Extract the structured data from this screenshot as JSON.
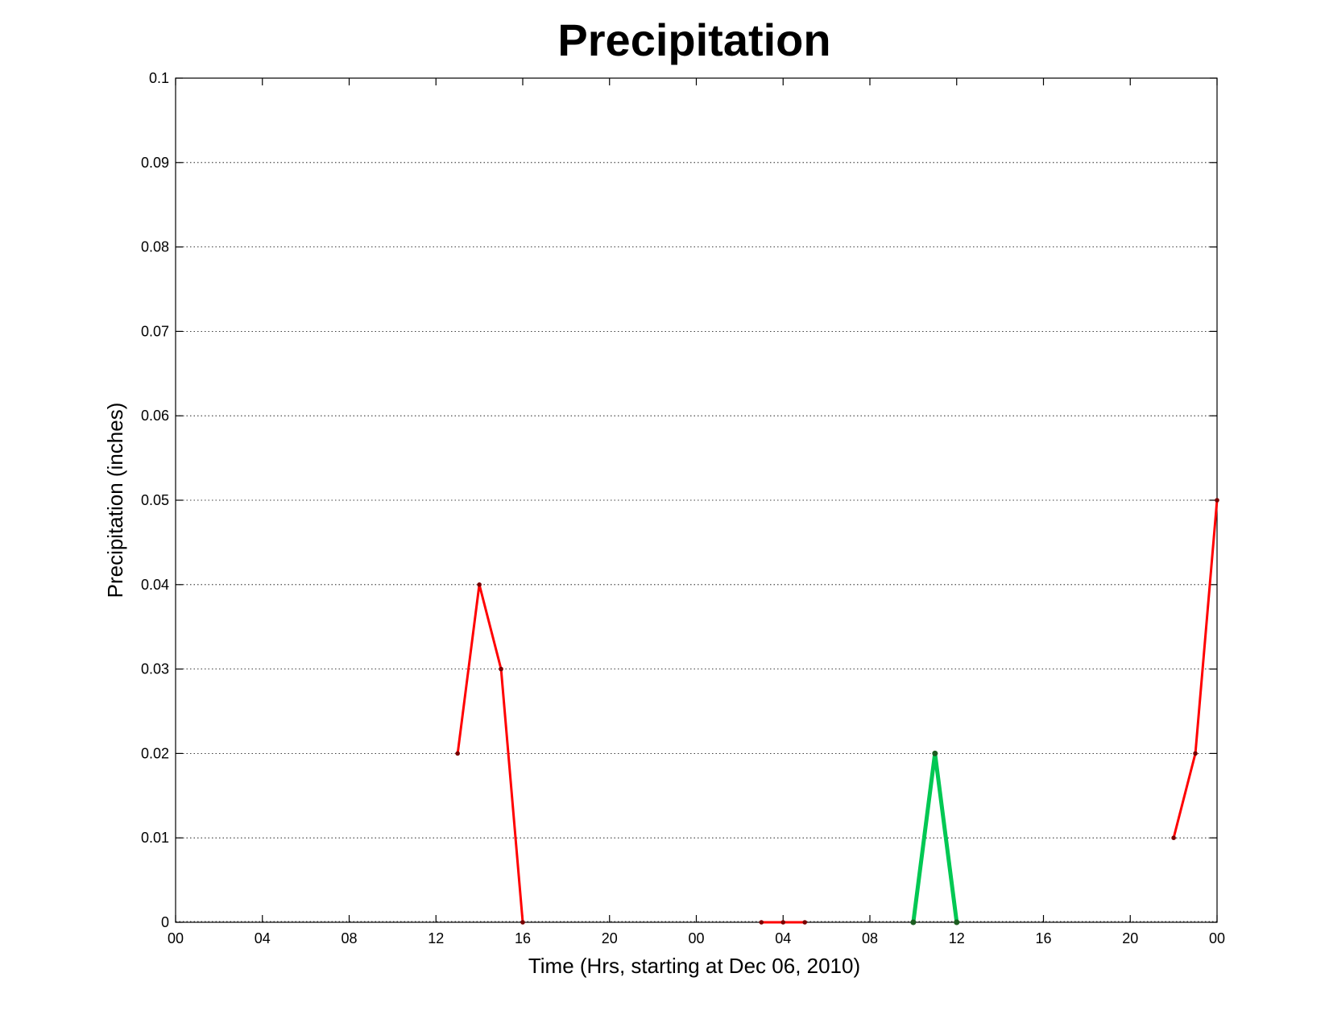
{
  "chart_data": {
    "type": "line",
    "title": "Precipitation",
    "xlabel": "Time (Hrs, starting at Dec 06, 2010)",
    "ylabel": "Precipitation (inches)",
    "xlim": [
      0,
      48
    ],
    "ylim": [
      0,
      0.1
    ],
    "x_ticks": [
      {
        "value": 0,
        "label": "00"
      },
      {
        "value": 4,
        "label": "04"
      },
      {
        "value": 8,
        "label": "08"
      },
      {
        "value": 12,
        "label": "12"
      },
      {
        "value": 16,
        "label": "16"
      },
      {
        "value": 20,
        "label": "20"
      },
      {
        "value": 24,
        "label": "00"
      },
      {
        "value": 28,
        "label": "04"
      },
      {
        "value": 32,
        "label": "08"
      },
      {
        "value": 36,
        "label": "12"
      },
      {
        "value": 40,
        "label": "16"
      },
      {
        "value": 44,
        "label": "20"
      },
      {
        "value": 48,
        "label": "00"
      }
    ],
    "y_ticks": [
      {
        "value": 0,
        "label": "0"
      },
      {
        "value": 0.01,
        "label": "0.01"
      },
      {
        "value": 0.02,
        "label": "0.02"
      },
      {
        "value": 0.03,
        "label": "0.03"
      },
      {
        "value": 0.04,
        "label": "0.04"
      },
      {
        "value": 0.05,
        "label": "0.05"
      },
      {
        "value": 0.06,
        "label": "0.06"
      },
      {
        "value": 0.07,
        "label": "0.07"
      },
      {
        "value": 0.08,
        "label": "0.08"
      },
      {
        "value": 0.09,
        "label": "0.09"
      },
      {
        "value": 0.1,
        "label": "0.1"
      }
    ],
    "grid": "on",
    "series": [
      {
        "color": "#ff0000",
        "marker_color": "#7a0000",
        "points": [
          [
            13,
            0.02
          ],
          [
            14,
            0.04
          ],
          [
            15,
            0.03
          ],
          [
            16,
            0
          ]
        ]
      },
      {
        "color": "#ff0000",
        "marker_color": "#7a0000",
        "points": [
          [
            27,
            0
          ],
          [
            28,
            0
          ],
          [
            29,
            0
          ]
        ]
      },
      {
        "color": "#00c853",
        "marker_color": "#1b5e20",
        "points": [
          [
            34,
            0
          ],
          [
            35,
            0.02
          ],
          [
            36,
            0
          ]
        ]
      },
      {
        "color": "#ff0000",
        "marker_color": "#7a0000",
        "points": [
          [
            46,
            0.01
          ],
          [
            47,
            0.02
          ],
          [
            48,
            0.05
          ]
        ]
      }
    ]
  }
}
